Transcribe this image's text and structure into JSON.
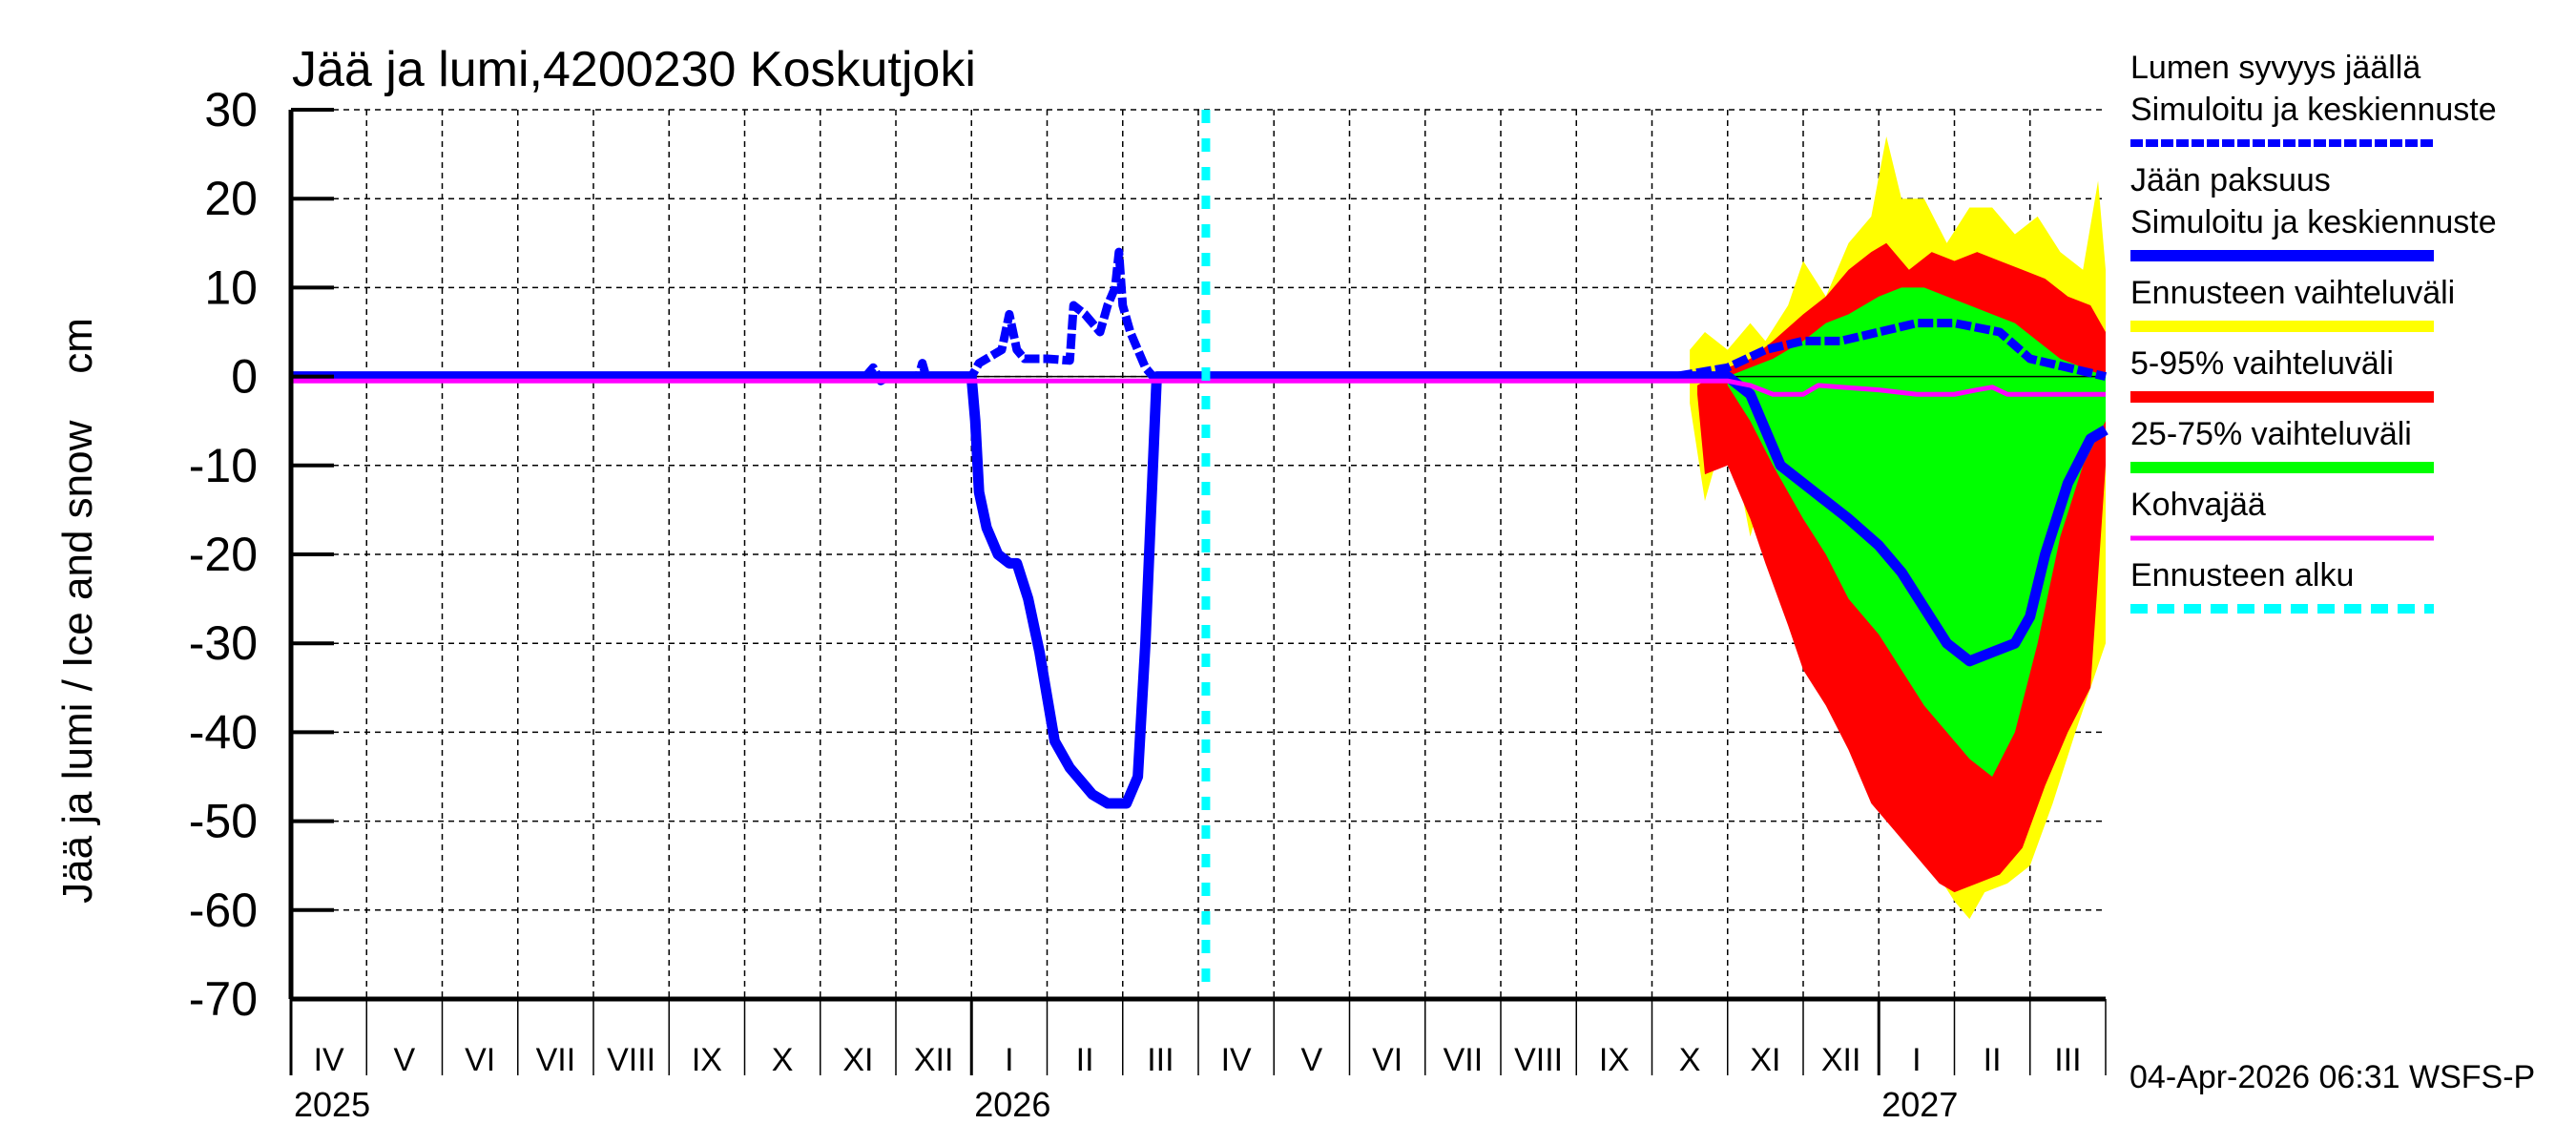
{
  "title": "Jää ja lumi,4200230 Koskutjoki",
  "footer": "04-Apr-2026 06:31 WSFS-P",
  "colors": {
    "snow": "#0000ff",
    "ice": "#0000ff",
    "range_full": "#ffff00",
    "range_5_95": "#ff0000",
    "range_25_75": "#00ff00",
    "slush_ice": "#ff00ff",
    "forecast_start": "#00ffff",
    "grid": "#000000"
  },
  "legend": [
    {
      "line1": "Lumen syvyys jäällä",
      "line2": "Simuloitu ja keskiennuste",
      "color": "#0000ff",
      "style": "dashed-thick"
    },
    {
      "line1": "Jään paksuus",
      "line2": "Simuloitu ja keskiennuste",
      "color": "#0000ff",
      "style": "solid-thick"
    },
    {
      "line1": "Ennusteen vaihteluväli",
      "line2": "",
      "color": "#ffff00",
      "style": "solid-thick"
    },
    {
      "line1": "5-95% vaihteluväli",
      "line2": "",
      "color": "#ff0000",
      "style": "solid-thick"
    },
    {
      "line1": "25-75% vaihteluväli",
      "line2": "",
      "color": "#00ff00",
      "style": "solid-thick"
    },
    {
      "line1": "Kohvajää",
      "line2": "",
      "color": "#ff00ff",
      "style": "solid-thin"
    },
    {
      "line1": "Ennusteen alku",
      "line2": "",
      "color": "#00ffff",
      "style": "dotted-thick"
    }
  ],
  "chart_data": {
    "type": "area",
    "title": "Jää ja lumi,4200230 Koskutjoki",
    "xlabel": "",
    "ylabel": "Jää ja lumi / Ice and snow    cm",
    "ylim": [
      -70,
      30
    ],
    "yticks": [
      30,
      20,
      10,
      0,
      -10,
      -20,
      -30,
      -40,
      -50,
      -60,
      -70
    ],
    "grid": true,
    "legend_position": "right",
    "x_unit": "months since 2025-04-01",
    "xlim": [
      0,
      24
    ],
    "month_labels": [
      "IV",
      "V",
      "VI",
      "VII",
      "VIII",
      "IX",
      "X",
      "XI",
      "XII",
      "I",
      "II",
      "III",
      "IV",
      "V",
      "VI",
      "VII",
      "VIII",
      "IX",
      "X",
      "XI",
      "XII",
      "I",
      "II",
      "III"
    ],
    "year_labels": [
      {
        "label": "2025",
        "x": 0
      },
      {
        "label": "2026",
        "x": 9
      },
      {
        "label": "2027",
        "x": 21
      }
    ],
    "forecast_start_x": 12.1,
    "series": [
      {
        "name": "Lumen syvyys jäällä (simuloitu ja keskiennuste)",
        "kind": "line-dashed",
        "points": [
          [
            0,
            0
          ],
          [
            7.6,
            0
          ],
          [
            7.7,
            1
          ],
          [
            7.8,
            -0.5
          ],
          [
            7.9,
            0
          ],
          [
            8.3,
            0
          ],
          [
            8.35,
            1.5
          ],
          [
            8.4,
            0
          ],
          [
            9.0,
            0
          ],
          [
            9.1,
            1.5
          ],
          [
            9.3,
            2.5
          ],
          [
            9.4,
            3
          ],
          [
            9.5,
            7
          ],
          [
            9.6,
            3
          ],
          [
            9.7,
            2
          ],
          [
            10.0,
            2
          ],
          [
            10.3,
            1.8
          ],
          [
            10.35,
            8
          ],
          [
            10.5,
            7
          ],
          [
            10.7,
            5
          ],
          [
            10.8,
            8
          ],
          [
            10.9,
            10
          ],
          [
            10.95,
            14
          ],
          [
            11.0,
            8
          ],
          [
            11.1,
            5
          ],
          [
            11.2,
            3
          ],
          [
            11.3,
            1
          ],
          [
            11.4,
            0
          ],
          [
            12.0,
            0
          ],
          [
            18.3,
            0
          ],
          [
            19.0,
            1
          ],
          [
            19.5,
            3
          ],
          [
            20.0,
            4
          ],
          [
            20.5,
            4
          ],
          [
            21.0,
            5
          ],
          [
            21.5,
            6
          ],
          [
            22.0,
            6
          ],
          [
            22.6,
            5
          ],
          [
            23.0,
            2
          ],
          [
            23.5,
            1
          ],
          [
            24.0,
            0
          ]
        ]
      },
      {
        "name": "Jään paksuus (simuloitu ja keskiennuste)",
        "kind": "line-solid",
        "points": [
          [
            0,
            0
          ],
          [
            9.0,
            0
          ],
          [
            9.05,
            -5
          ],
          [
            9.1,
            -13
          ],
          [
            9.2,
            -17
          ],
          [
            9.35,
            -20
          ],
          [
            9.5,
            -21
          ],
          [
            9.6,
            -21
          ],
          [
            9.75,
            -25
          ],
          [
            9.9,
            -31
          ],
          [
            10.1,
            -41
          ],
          [
            10.3,
            -44
          ],
          [
            10.6,
            -47
          ],
          [
            10.8,
            -48
          ],
          [
            11.05,
            -48
          ],
          [
            11.2,
            -45
          ],
          [
            11.3,
            -30
          ],
          [
            11.4,
            -10
          ],
          [
            11.45,
            0
          ],
          [
            12.0,
            0
          ],
          [
            19.0,
            0
          ],
          [
            19.3,
            -2
          ],
          [
            19.5,
            -6
          ],
          [
            19.7,
            -10
          ],
          [
            20.0,
            -12
          ],
          [
            20.3,
            -14
          ],
          [
            20.6,
            -16
          ],
          [
            21.0,
            -19
          ],
          [
            21.3,
            -22
          ],
          [
            21.6,
            -26
          ],
          [
            21.9,
            -30
          ],
          [
            22.2,
            -32
          ],
          [
            22.5,
            -31
          ],
          [
            22.8,
            -30
          ],
          [
            23.0,
            -27
          ],
          [
            23.2,
            -20
          ],
          [
            23.5,
            -12
          ],
          [
            23.8,
            -7
          ],
          [
            24.0,
            -6
          ]
        ]
      },
      {
        "name": "Kohvajää",
        "kind": "line-thin",
        "points": [
          [
            0,
            -0.5
          ],
          [
            19.0,
            -0.5
          ],
          [
            19.3,
            -1
          ],
          [
            19.6,
            -2
          ],
          [
            20.0,
            -2
          ],
          [
            20.2,
            -1
          ],
          [
            20.5,
            -1.2
          ],
          [
            21.0,
            -1.5
          ],
          [
            21.5,
            -2
          ],
          [
            22.0,
            -2
          ],
          [
            22.3,
            -1.5
          ],
          [
            22.5,
            -1.2
          ],
          [
            22.7,
            -2
          ],
          [
            23.0,
            -2
          ],
          [
            24.0,
            -2
          ]
        ]
      }
    ],
    "bands": [
      {
        "name": "Ennusteen vaihteluväli",
        "color": "#ffff00",
        "upper": [
          [
            18.5,
            3
          ],
          [
            18.7,
            5
          ],
          [
            19.0,
            3
          ],
          [
            19.3,
            6
          ],
          [
            19.5,
            4
          ],
          [
            19.8,
            8
          ],
          [
            20.0,
            13
          ],
          [
            20.3,
            9
          ],
          [
            20.6,
            15
          ],
          [
            20.9,
            18
          ],
          [
            21.1,
            27
          ],
          [
            21.3,
            20
          ],
          [
            21.6,
            20
          ],
          [
            21.9,
            15
          ],
          [
            22.2,
            19
          ],
          [
            22.5,
            19
          ],
          [
            22.8,
            16
          ],
          [
            23.1,
            18
          ],
          [
            23.4,
            14
          ],
          [
            23.7,
            12
          ],
          [
            23.9,
            22
          ],
          [
            24.0,
            12
          ]
        ],
        "lower": [
          [
            18.5,
            -3
          ],
          [
            18.7,
            -14
          ],
          [
            19.0,
            -5
          ],
          [
            19.3,
            -18
          ],
          [
            19.5,
            -12
          ],
          [
            19.8,
            -22
          ],
          [
            20.0,
            -33
          ],
          [
            20.3,
            -35
          ],
          [
            20.6,
            -40
          ],
          [
            20.9,
            -45
          ],
          [
            21.1,
            -45
          ],
          [
            21.4,
            -51
          ],
          [
            21.7,
            -55
          ],
          [
            22.0,
            -59
          ],
          [
            22.2,
            -61
          ],
          [
            22.4,
            -58
          ],
          [
            22.7,
            -57
          ],
          [
            23.0,
            -55
          ],
          [
            23.3,
            -48
          ],
          [
            23.6,
            -40
          ],
          [
            24.0,
            -30
          ]
        ]
      },
      {
        "name": "5-95% vaihteluväli",
        "color": "#ff0000",
        "upper": [
          [
            18.6,
            -1
          ],
          [
            19.0,
            1
          ],
          [
            19.3,
            2
          ],
          [
            19.6,
            4
          ],
          [
            20.0,
            7
          ],
          [
            20.3,
            9
          ],
          [
            20.6,
            12
          ],
          [
            20.9,
            14
          ],
          [
            21.1,
            15
          ],
          [
            21.4,
            12
          ],
          [
            21.7,
            14
          ],
          [
            22.0,
            13
          ],
          [
            22.3,
            14
          ],
          [
            22.6,
            13
          ],
          [
            22.9,
            12
          ],
          [
            23.2,
            11
          ],
          [
            23.5,
            9
          ],
          [
            23.8,
            8
          ],
          [
            24.0,
            5
          ]
        ],
        "lower": [
          [
            18.6,
            -2
          ],
          [
            18.7,
            -11
          ],
          [
            19.0,
            -10
          ],
          [
            19.3,
            -16
          ],
          [
            19.5,
            -21
          ],
          [
            19.8,
            -28
          ],
          [
            20.0,
            -33
          ],
          [
            20.3,
            -37
          ],
          [
            20.6,
            -42
          ],
          [
            20.9,
            -48
          ],
          [
            21.2,
            -51
          ],
          [
            21.5,
            -54
          ],
          [
            21.8,
            -57
          ],
          [
            22.0,
            -58
          ],
          [
            22.3,
            -57
          ],
          [
            22.6,
            -56
          ],
          [
            22.9,
            -53
          ],
          [
            23.2,
            -46
          ],
          [
            23.5,
            -40
          ],
          [
            23.8,
            -35
          ],
          [
            24.0,
            -10
          ]
        ]
      },
      {
        "name": "25-75% vaihteluväli",
        "color": "#00ff00",
        "upper": [
          [
            19.0,
            0
          ],
          [
            19.3,
            1
          ],
          [
            19.6,
            2
          ],
          [
            20.0,
            4
          ],
          [
            20.3,
            6
          ],
          [
            20.6,
            7
          ],
          [
            21.0,
            9
          ],
          [
            21.3,
            10
          ],
          [
            21.6,
            10
          ],
          [
            21.9,
            9
          ],
          [
            22.2,
            8
          ],
          [
            22.5,
            7
          ],
          [
            22.8,
            6
          ],
          [
            23.1,
            4
          ],
          [
            23.4,
            2
          ],
          [
            23.7,
            1
          ],
          [
            24.0,
            0
          ]
        ],
        "lower": [
          [
            19.0,
            -1
          ],
          [
            19.3,
            -5
          ],
          [
            19.6,
            -10
          ],
          [
            20.0,
            -16
          ],
          [
            20.3,
            -20
          ],
          [
            20.6,
            -25
          ],
          [
            21.0,
            -29
          ],
          [
            21.3,
            -33
          ],
          [
            21.6,
            -37
          ],
          [
            21.9,
            -40
          ],
          [
            22.2,
            -43
          ],
          [
            22.5,
            -45
          ],
          [
            22.8,
            -40
          ],
          [
            23.1,
            -30
          ],
          [
            23.4,
            -18
          ],
          [
            23.7,
            -10
          ],
          [
            24.0,
            -5
          ]
        ]
      }
    ]
  }
}
